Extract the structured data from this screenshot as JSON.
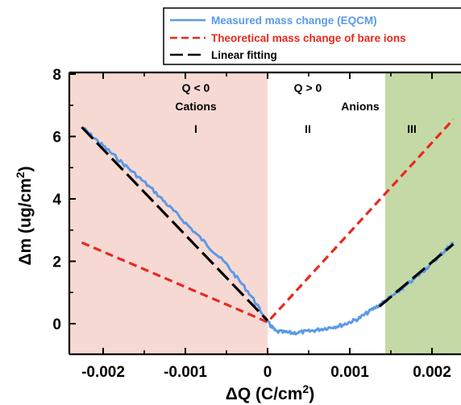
{
  "chart_data": {
    "type": "line",
    "xlabel_main": "ΔQ (C/cm",
    "xlabel_sup": "2",
    "xlabel_tail": ")",
    "ylabel_main": "Δm (ug/cm",
    "ylabel_sup": "2",
    "ylabel_tail": ")",
    "xlim": [
      -0.00252,
      0.00252
    ],
    "ylim": [
      -0.9,
      8
    ],
    "x_ticks": [
      -0.002,
      -0.001,
      0,
      0.001,
      0.002
    ],
    "x_tick_labels": [
      "-0.002",
      "-0.001",
      "0",
      "0.001",
      "0.002"
    ],
    "y_ticks": [
      0,
      2,
      4,
      6,
      8
    ],
    "y_tick_labels": [
      "0",
      "2",
      "4",
      "6",
      "8"
    ],
    "regions": [
      {
        "label": "I",
        "x_start": -0.00252,
        "x_end": 0,
        "color": "#f7d9d4",
        "title_line1": "Q < 0",
        "title_line2": "Cations"
      },
      {
        "label": "II",
        "x_start": 0,
        "x_end": 0.00143,
        "color": "#ffffff",
        "title_line1": "Q > 0",
        "title_line2": "Anions"
      },
      {
        "label": "III",
        "x_start": 0.00143,
        "x_end": 0.00252,
        "color": "#c5d9a6",
        "title_line1": "",
        "title_line2": ""
      }
    ],
    "series": [
      {
        "name": "Measured mass change (EQCM)",
        "color": "#5a9ae6",
        "style": "solid",
        "x": [
          -0.00226,
          -0.002,
          -0.0017,
          -0.0014,
          -0.0011,
          -0.0008,
          -0.0005,
          -0.0002,
          0,
          0.0001,
          0.0003,
          0.0005,
          0.0007,
          0.0009,
          0.0011,
          0.0013,
          0.0015,
          0.0017,
          0.0019,
          0.0021,
          0.00226
        ],
        "y": [
          6.3,
          5.7,
          5.0,
          4.3,
          3.5,
          2.7,
          1.9,
          0.9,
          0.05,
          -0.25,
          -0.3,
          -0.25,
          -0.15,
          -0.05,
          0.15,
          0.5,
          0.85,
          1.25,
          1.7,
          2.2,
          2.6
        ]
      },
      {
        "name": "Theoretical mass change of bare ions",
        "color": "#e8291e",
        "style": "dashed",
        "x": [
          -0.00226,
          0,
          0.00226
        ],
        "y": [
          2.6,
          0.05,
          6.55
        ]
      },
      {
        "name": "Linear fitting",
        "color": "#000000",
        "style": "longdash",
        "segments": [
          {
            "x": [
              -0.00226,
              0
            ],
            "y": [
              6.3,
              0.1
            ]
          },
          {
            "x": [
              0.00136,
              0.00226
            ],
            "y": [
              0.55,
              2.55
            ]
          }
        ]
      }
    ],
    "legend_position": "top-right"
  }
}
